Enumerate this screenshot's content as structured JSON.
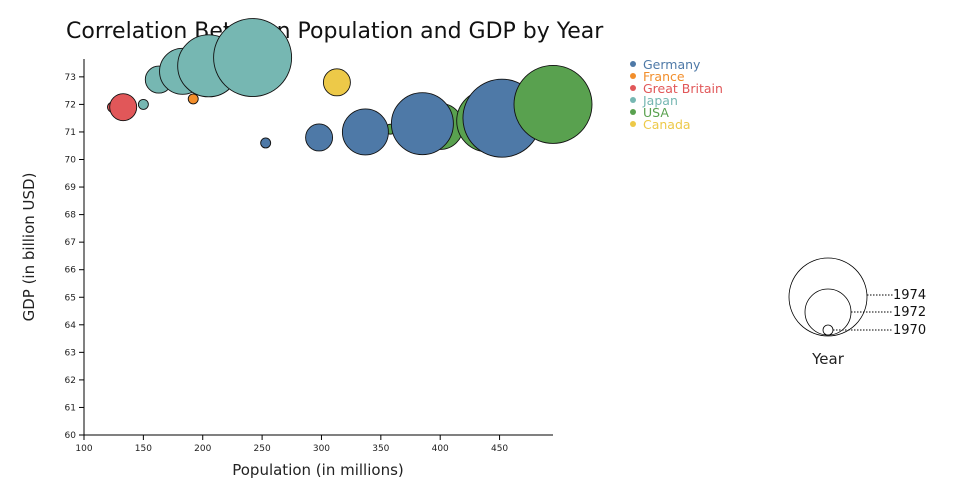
{
  "chart_data": {
    "type": "scatter",
    "title": "Correlation Between Population and GDP by Year",
    "xlabel": "Population (in millions)",
    "ylabel": "GDP (in billion USD)",
    "xlim": [
      100,
      495
    ],
    "ylim": [
      60,
      74
    ],
    "x_ticks": [
      100,
      150,
      200,
      250,
      300,
      350,
      400,
      450
    ],
    "y_ticks": [
      60,
      61,
      62,
      63,
      64,
      65,
      66,
      67,
      68,
      69,
      70,
      71,
      72,
      73
    ],
    "bubble_size_meaning": "year",
    "legend_position": "top-right",
    "series": [
      {
        "name": "Germany",
        "color": "#4e79a7",
        "points": [
          {
            "x": 253,
            "y": 70.6,
            "year": 1970
          },
          {
            "x": 298,
            "y": 70.8,
            "year": 1971
          },
          {
            "x": 337,
            "y": 71.0,
            "year": 1972
          },
          {
            "x": 385,
            "y": 71.3,
            "year": 1973
          },
          {
            "x": 452,
            "y": 71.5,
            "year": 1974
          }
        ]
      },
      {
        "name": "France",
        "color": "#f28e2b",
        "points": [
          {
            "x": 192,
            "y": 72.2,
            "year": 1970
          }
        ]
      },
      {
        "name": "Great Britain",
        "color": "#e15759",
        "points": [
          {
            "x": 124,
            "y": 71.9,
            "year": 1970
          },
          {
            "x": 133,
            "y": 71.9,
            "year": 1971
          }
        ]
      },
      {
        "name": "Japan",
        "color": "#76b7b2",
        "points": [
          {
            "x": 150,
            "y": 72.0,
            "year": 1970
          },
          {
            "x": 163,
            "y": 72.9,
            "year": 1971
          },
          {
            "x": 183,
            "y": 73.2,
            "year": 1972
          },
          {
            "x": 205,
            "y": 73.4,
            "year": 1973
          },
          {
            "x": 242,
            "y": 73.7,
            "year": 1974
          }
        ]
      },
      {
        "name": "USA",
        "color": "#59a14f",
        "points": [
          {
            "x": 358,
            "y": 71.1,
            "year": 1970
          },
          {
            "x": 400,
            "y": 71.2,
            "year": 1972
          },
          {
            "x": 440,
            "y": 71.4,
            "year": 1973
          },
          {
            "x": 495,
            "y": 72.0,
            "year": 1974
          }
        ]
      },
      {
        "name": "Canada",
        "color": "#edc948",
        "points": [
          {
            "x": 313,
            "y": 72.8,
            "year": 1971
          }
        ]
      }
    ],
    "size_legend": {
      "title": "Year",
      "entries": [
        "1974",
        "1972",
        "1970"
      ]
    }
  }
}
